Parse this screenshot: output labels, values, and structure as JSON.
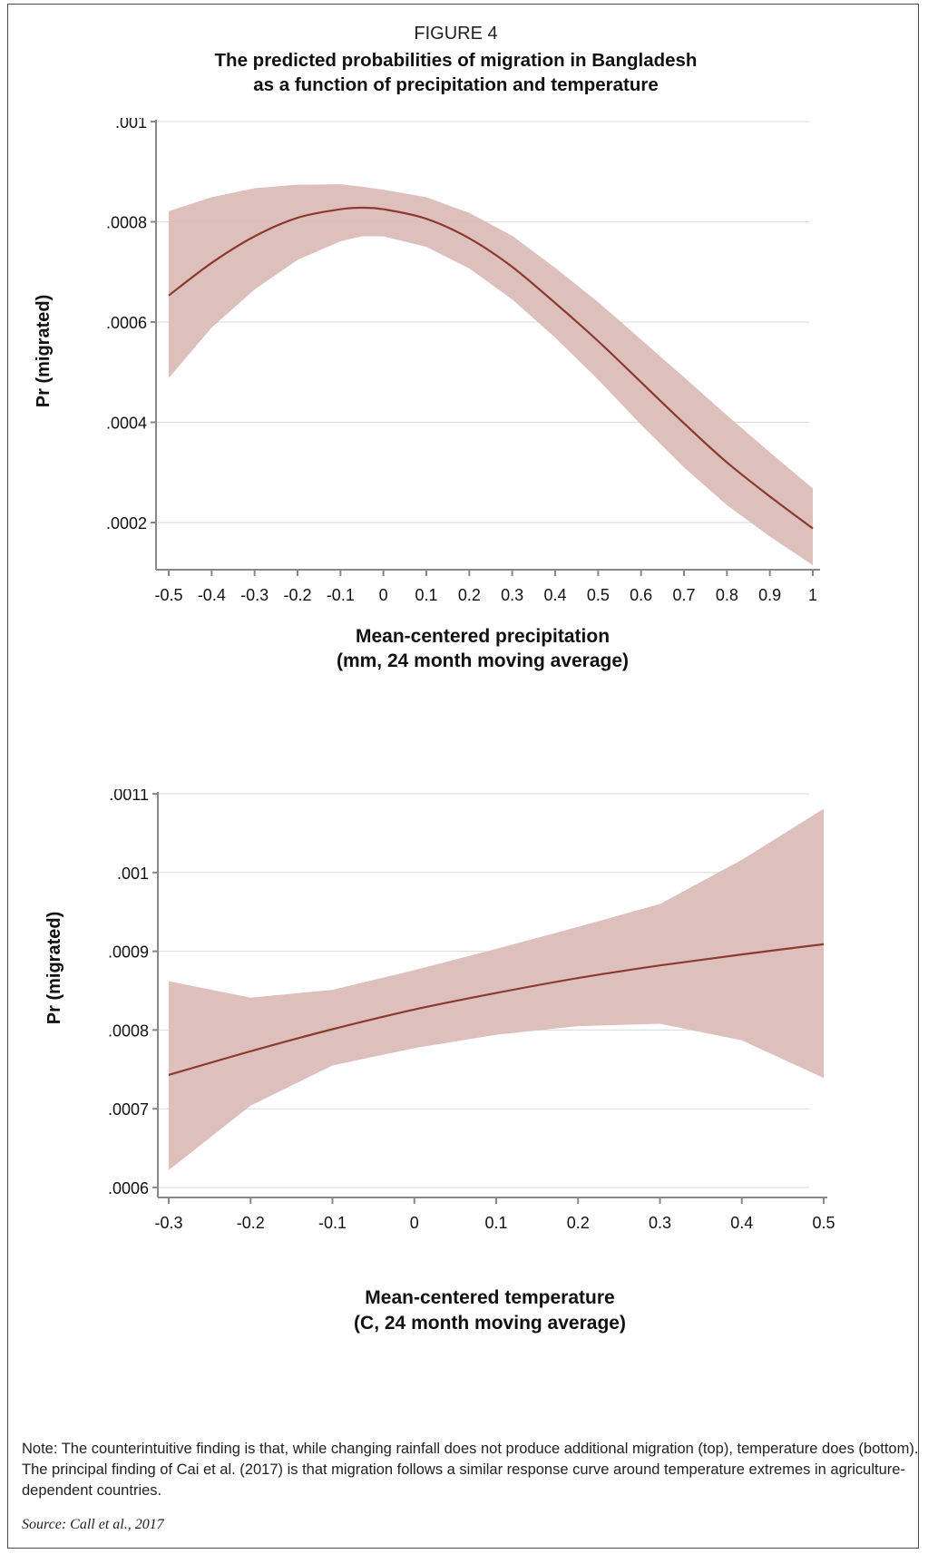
{
  "figure_label": "FIGURE 4",
  "title_line1": "The predicted probabilities of migration in Bangladesh",
  "title_line2": "as a function of precipitation and temperature",
  "note": "Note: The counterintuitive finding is that, while changing rainfall does not produce additional migration (top), temperature does (bottom). The principal finding of Cai et al. (2017) is that migration follows a similar response curve around temperature extremes in agriculture-dependent countries.",
  "source": "Source: Call et al., 2017",
  "colors": {
    "line": "#8b3a2e",
    "band": "#dbbcb8",
    "grid": "#d9d9d9",
    "axis": "#888888"
  },
  "chart_data": [
    {
      "type": "line",
      "title": "",
      "xlabel": "Mean-centered precipitation",
      "xlabel_line2": "(mm, 24 month moving average)",
      "ylabel": "Pr (migrated)",
      "xlim": [
        -0.53,
        1.03
      ],
      "ylim": [
        0.00011,
        0.001
      ],
      "grid": true,
      "x_ticks": [
        -0.5,
        -0.4,
        -0.3,
        -0.2,
        -0.1,
        0,
        0.1,
        0.2,
        0.3,
        0.4,
        0.5,
        0.6,
        0.7,
        0.8,
        0.9,
        1
      ],
      "x_tick_labels": [
        "-0.5",
        "-0.4",
        "-0.3",
        "-0.2",
        "-0.1",
        "0",
        "0.1",
        "0.2",
        "0.3",
        "0.4",
        "0.5",
        "0.6",
        "0.7",
        "0.8",
        "0.9",
        "1"
      ],
      "y_ticks": [
        0.0002,
        0.0004,
        0.0006,
        0.0008,
        0.001
      ],
      "y_tick_labels": [
        ".0002",
        ".0004",
        ".0006",
        ".0008",
        ".001"
      ],
      "series": [
        {
          "x": [
            -0.5,
            -0.4,
            -0.3,
            -0.2,
            -0.1,
            -0.05,
            0,
            0.1,
            0.2,
            0.3,
            0.4,
            0.5,
            0.6,
            0.7,
            0.8,
            0.9,
            1
          ],
          "y": [
            0.000653,
            0.000718,
            0.000771,
            0.000808,
            0.000825,
            0.000828,
            0.000825,
            0.000806,
            0.000767,
            0.00071,
            0.000638,
            0.000562,
            0.00048,
            0.000398,
            0.00032,
            0.000252,
            0.000188
          ],
          "lower": [
            0.000488,
            0.000589,
            0.000665,
            0.000724,
            0.000761,
            0.000771,
            0.000771,
            0.00075,
            0.000707,
            0.000645,
            0.000569,
            0.000485,
            0.000395,
            0.00031,
            0.000235,
            0.000172,
            0.000115
          ],
          "upper": [
            0.000821,
            0.000849,
            0.000867,
            0.000874,
            0.000875,
            0.00087,
            0.000864,
            0.000849,
            0.000818,
            0.000772,
            0.000708,
            0.00064,
            0.000565,
            0.00049,
            0.000414,
            0.00034,
            0.000268
          ]
        }
      ]
    },
    {
      "type": "line",
      "title": "",
      "xlabel": "Mean-centered temperature",
      "xlabel_line2": "(C, 24 month moving average)",
      "ylabel": "Pr (migrated)",
      "xlim": [
        -0.316,
        0.516
      ],
      "ylim": [
        0.000594,
        0.0011
      ],
      "grid": true,
      "x_ticks": [
        -0.3,
        -0.2,
        -0.1,
        0,
        0.1,
        0.2,
        0.3,
        0.4,
        0.5
      ],
      "x_tick_labels": [
        "-0.3",
        "-0.2",
        "-0.1",
        "0",
        "0.1",
        "0.2",
        "0.3",
        "0.4",
        "0.5"
      ],
      "y_ticks": [
        0.0006,
        0.0007,
        0.0008,
        0.0009,
        0.001,
        0.0011
      ],
      "y_tick_labels": [
        ".0006",
        ".0007",
        ".0008",
        ".0009",
        ".001",
        ".0011"
      ],
      "series": [
        {
          "x": [
            -0.3,
            -0.2,
            -0.1,
            0,
            0.1,
            0.2,
            0.3,
            0.4,
            0.5
          ],
          "y": [
            0.000743,
            0.000773,
            0.000801,
            0.000826,
            0.000847,
            0.000866,
            0.000882,
            0.000896,
            0.000909
          ],
          "lower": [
            0.000622,
            0.000704,
            0.000755,
            0.000777,
            0.000794,
            0.000805,
            0.000808,
            0.000787,
            0.000739
          ],
          "upper": [
            0.000862,
            0.000841,
            0.000851,
            0.000876,
            0.000903,
            0.000931,
            0.00096,
            0.001016,
            0.001081
          ]
        }
      ]
    }
  ]
}
